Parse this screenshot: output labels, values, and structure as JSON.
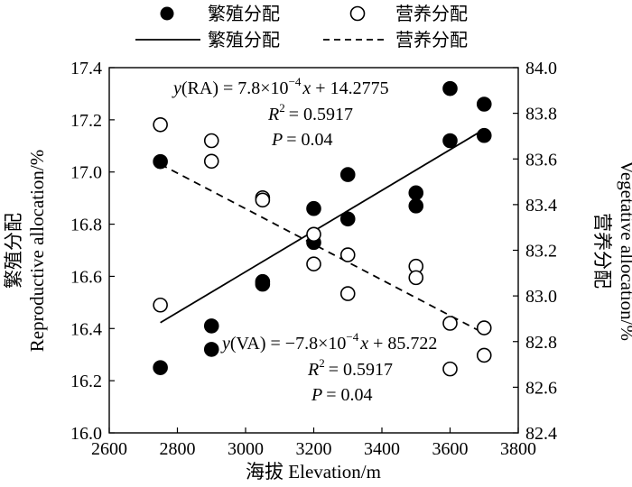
{
  "chart_data": {
    "type": "scatter",
    "xlabel": "海拔 Elevation/m",
    "ylabel_left": "繁殖分配 Reproductive allocation/%",
    "ylabel_left_cn": "繁殖分配",
    "ylabel_left_en": "Reproductive allocation/%",
    "ylabel_right": "营养分配 Vegetative allocation/%",
    "ylabel_right_cn": "营养分配",
    "ylabel_right_en": "Vegetative allocation/%",
    "xlim": [
      2600,
      3800
    ],
    "ylim_left": [
      16.0,
      17.4
    ],
    "ylim_right": [
      82.4,
      84.0
    ],
    "x_ticks": [
      "2600",
      "2800",
      "3000",
      "3200",
      "3400",
      "3600",
      "3800"
    ],
    "y_left_ticks": [
      "16.0",
      "16.2",
      "16.4",
      "16.6",
      "16.8",
      "17.0",
      "17.2",
      "17.4"
    ],
    "y_right_ticks": [
      "82.4",
      "82.6",
      "82.8",
      "83.0",
      "83.2",
      "83.4",
      "83.6",
      "83.8",
      "84.0"
    ],
    "legend": {
      "ra_points": "繁殖分配",
      "va_points": "营养分配",
      "ra_line": "繁殖分配",
      "va_line": "营养分配"
    },
    "series": [
      {
        "name": "繁殖分配",
        "axis": "left",
        "marker": "filled-circle",
        "points": [
          [
            2750,
            17.04
          ],
          [
            2750,
            16.25
          ],
          [
            2900,
            16.41
          ],
          [
            2900,
            16.32
          ],
          [
            3050,
            16.58
          ],
          [
            3050,
            16.57
          ],
          [
            3200,
            16.86
          ],
          [
            3200,
            16.73
          ],
          [
            3300,
            16.99
          ],
          [
            3300,
            16.82
          ],
          [
            3500,
            16.92
          ],
          [
            3500,
            16.87
          ],
          [
            3600,
            17.32
          ],
          [
            3600,
            17.12
          ],
          [
            3700,
            17.26
          ],
          [
            3700,
            17.14
          ]
        ]
      },
      {
        "name": "营养分配",
        "axis": "right",
        "marker": "open-circle",
        "points": [
          [
            2750,
            83.75
          ],
          [
            2750,
            82.96
          ],
          [
            2900,
            83.68
          ],
          [
            2900,
            83.59
          ],
          [
            3050,
            83.43
          ],
          [
            3050,
            83.42
          ],
          [
            3200,
            83.27
          ],
          [
            3200,
            83.14
          ],
          [
            3300,
            83.18
          ],
          [
            3300,
            83.01
          ],
          [
            3500,
            83.13
          ],
          [
            3500,
            83.08
          ],
          [
            3600,
            82.88
          ],
          [
            3600,
            82.68
          ],
          [
            3700,
            82.86
          ],
          [
            3700,
            82.74
          ]
        ]
      }
    ],
    "fits": [
      {
        "name": "繁殖分配",
        "axis": "left",
        "style": "solid",
        "x_range": [
          2750,
          3700
        ],
        "slope": 0.00078,
        "intercept": 14.2775,
        "equation_prefix": "y",
        "equation_tag": "(RA) = 7.8×10",
        "equation_exp": "−4",
        "equation_tail": "x + 14.2775",
        "r2": "= 0.5917",
        "p": "= 0.04"
      },
      {
        "name": "营养分配",
        "axis": "right",
        "style": "dashed",
        "x_range": [
          2750,
          3700
        ],
        "slope": -0.00078,
        "intercept": 85.722,
        "equation_prefix": "y",
        "equation_tag": "(VA) = −7.8×10",
        "equation_exp": "−4",
        "equation_tail": "x + 85.722",
        "r2": "= 0.5917",
        "p": "= 0.04"
      }
    ]
  }
}
